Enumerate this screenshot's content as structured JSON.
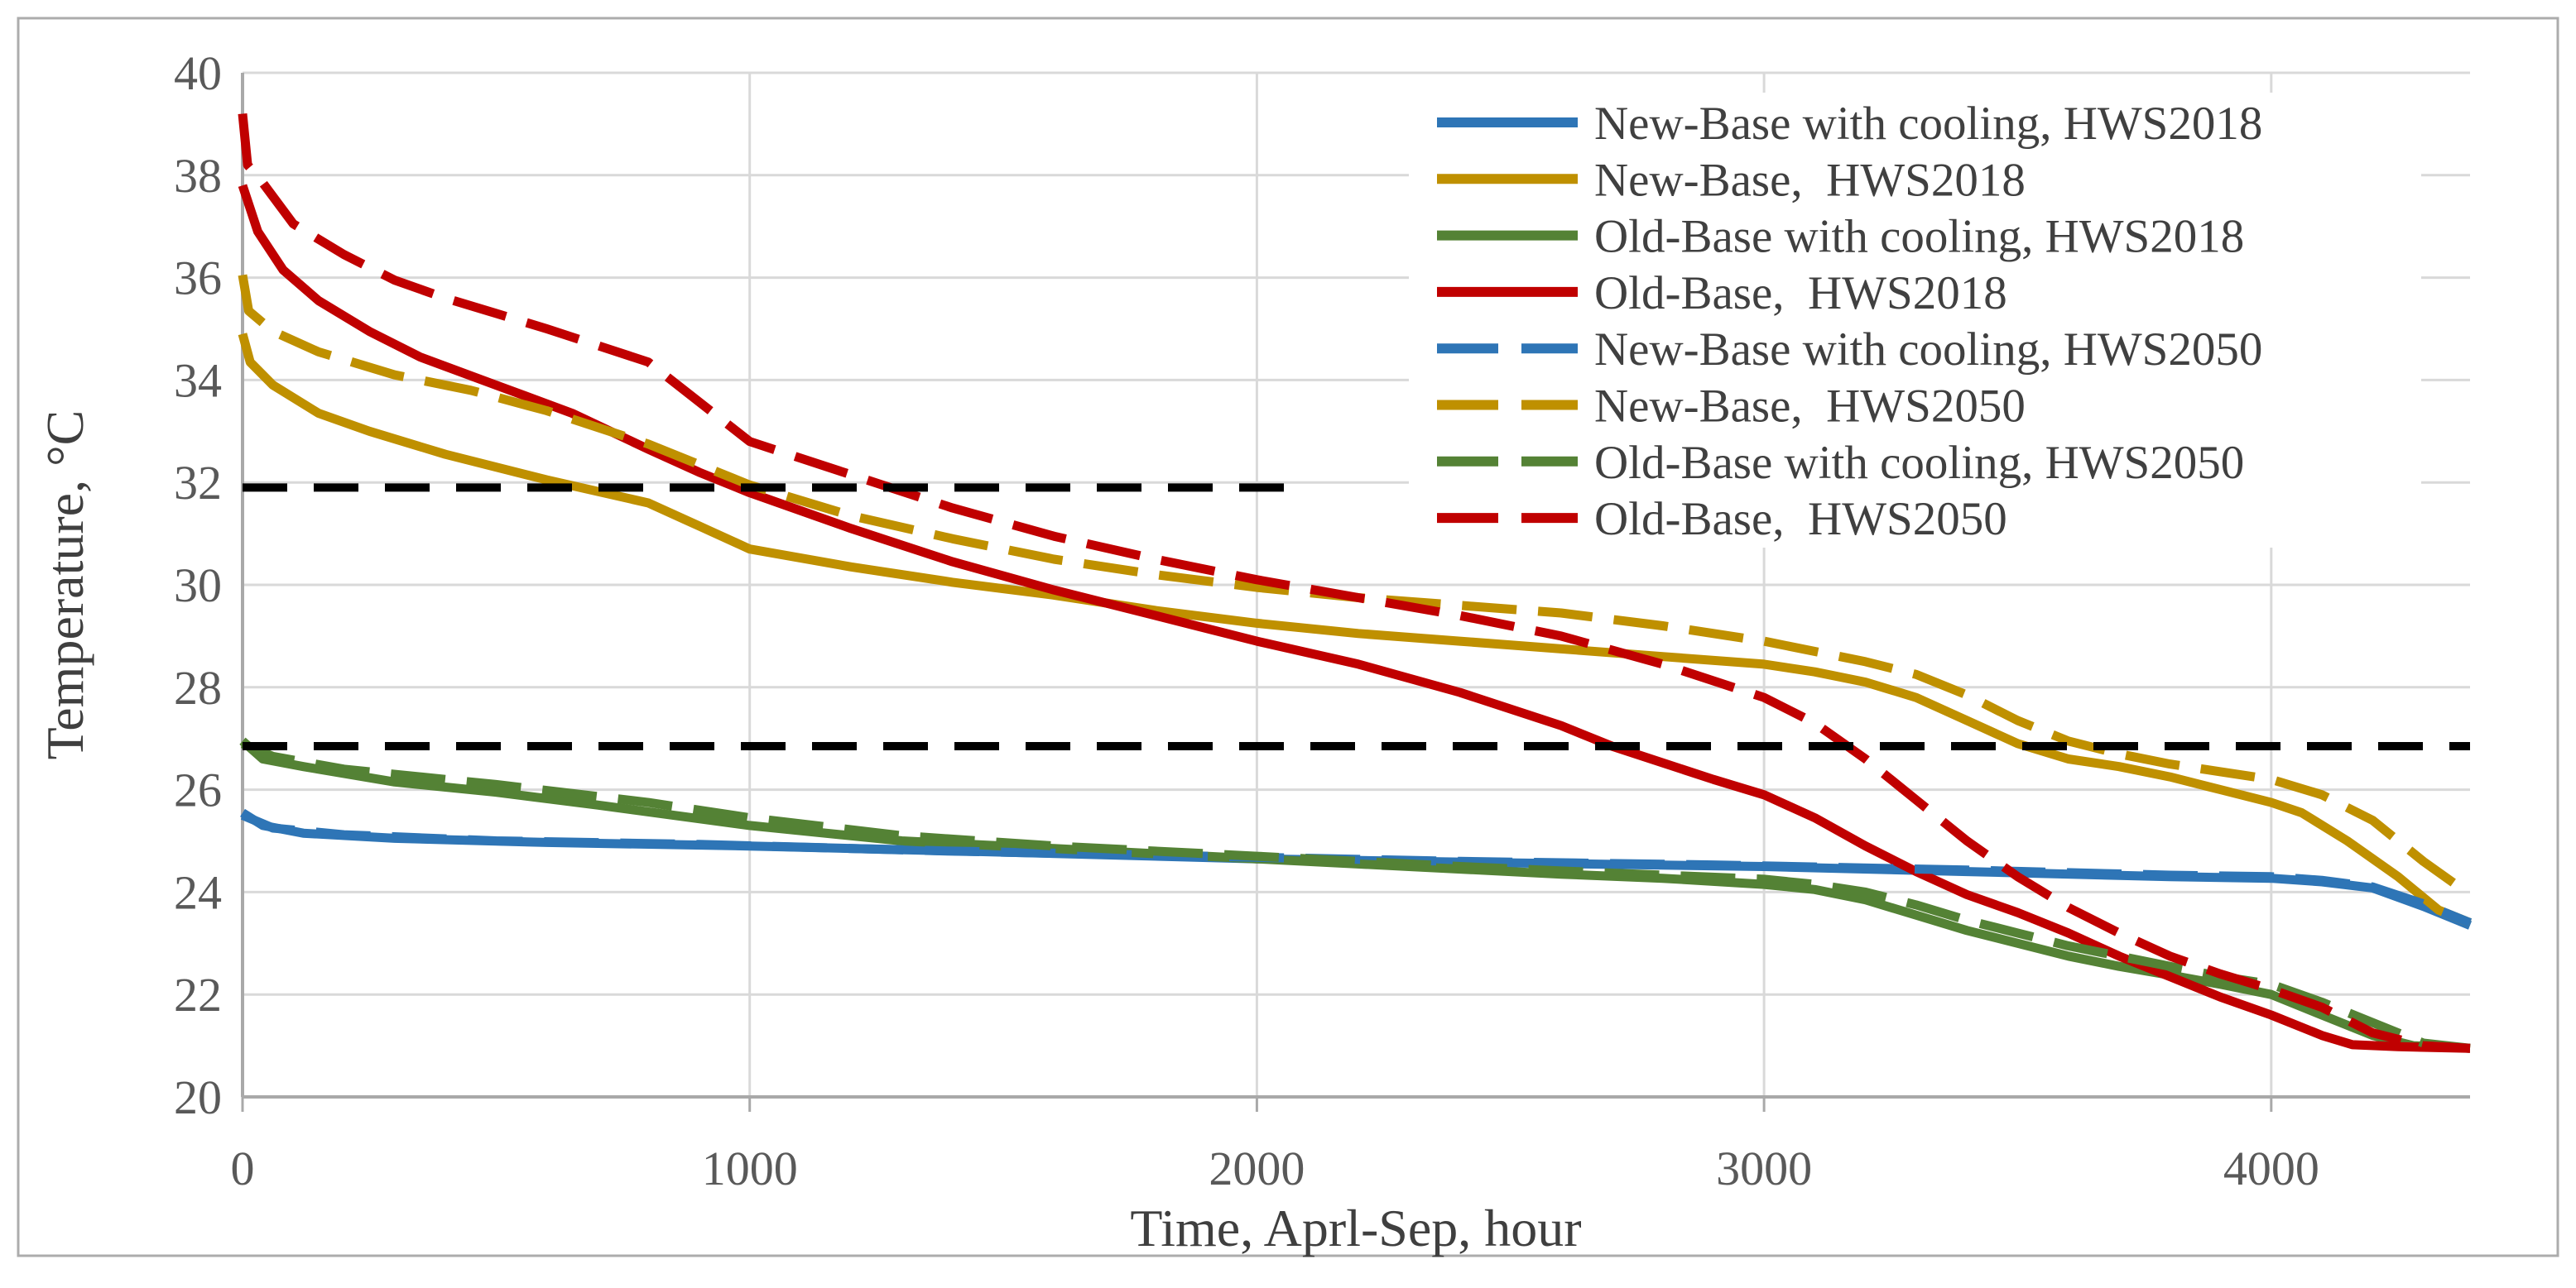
{
  "figure": {
    "type": "temperature-duration-line-chart",
    "background": "#ffffff",
    "border_color": "#acacac"
  },
  "chart_data": {
    "type": "line",
    "title": "",
    "xlabel": "Time, Aprl-Sep, hour",
    "ylabel": "Temperature, °C",
    "xlim": [
      0,
      4392
    ],
    "ylim": [
      20,
      40
    ],
    "xticks": [
      0,
      1000,
      2000,
      3000,
      4000
    ],
    "yticks": [
      20,
      22,
      24,
      26,
      28,
      30,
      32,
      34,
      36,
      38,
      40
    ],
    "grid": true,
    "gridline_color": "#d9d9d9",
    "axis_line_color": "#a9a9a9",
    "legend_position": "inside-top-right",
    "thresholds": [
      {
        "label": "upper-setpoint-line",
        "value": 31.9,
        "x_start": 0,
        "x_end": 2090,
        "color": "#000000",
        "style": "dashed"
      },
      {
        "label": "lower-setpoint-line",
        "value": 26.85,
        "x_start": 0,
        "x_end": 4392,
        "color": "#000000",
        "style": "dashed"
      }
    ],
    "series": [
      {
        "name": "New-Base with cooling, HWS2018",
        "color": "#2e75b6",
        "dash": false,
        "points": [
          [
            0,
            25.55
          ],
          [
            40,
            25.3
          ],
          [
            120,
            25.15
          ],
          [
            300,
            25.05
          ],
          [
            600,
            24.97
          ],
          [
            1000,
            24.9
          ],
          [
            1500,
            24.78
          ],
          [
            2000,
            24.65
          ],
          [
            2500,
            24.57
          ],
          [
            3000,
            24.5
          ],
          [
            3400,
            24.4
          ],
          [
            3800,
            24.3
          ],
          [
            4000,
            24.27
          ],
          [
            4100,
            24.2
          ],
          [
            4200,
            24.08
          ],
          [
            4300,
            23.72
          ],
          [
            4392,
            23.35
          ]
        ]
      },
      {
        "name": "New-Base,  HWS2018",
        "color": "#bf9000",
        "dash": false,
        "points": [
          [
            0,
            34.9
          ],
          [
            15,
            34.35
          ],
          [
            60,
            33.9
          ],
          [
            150,
            33.35
          ],
          [
            250,
            33.0
          ],
          [
            400,
            32.55
          ],
          [
            600,
            32.05
          ],
          [
            800,
            31.6
          ],
          [
            900,
            31.15
          ],
          [
            1000,
            30.7
          ],
          [
            1200,
            30.35
          ],
          [
            1400,
            30.05
          ],
          [
            1600,
            29.8
          ],
          [
            1800,
            29.5
          ],
          [
            2000,
            29.25
          ],
          [
            2200,
            29.05
          ],
          [
            2400,
            28.9
          ],
          [
            2600,
            28.75
          ],
          [
            2800,
            28.6
          ],
          [
            3000,
            28.45
          ],
          [
            3100,
            28.3
          ],
          [
            3200,
            28.1
          ],
          [
            3300,
            27.8
          ],
          [
            3400,
            27.35
          ],
          [
            3500,
            26.9
          ],
          [
            3600,
            26.6
          ],
          [
            3700,
            26.45
          ],
          [
            3800,
            26.25
          ],
          [
            3900,
            26.0
          ],
          [
            4000,
            25.75
          ],
          [
            4060,
            25.55
          ],
          [
            4150,
            25.0
          ],
          [
            4250,
            24.3
          ],
          [
            4330,
            23.65
          ],
          [
            4392,
            23.4
          ]
        ]
      },
      {
        "name": "Old-Base with cooling, HWS2018",
        "color": "#548235",
        "dash": false,
        "points": [
          [
            0,
            26.95
          ],
          [
            40,
            26.6
          ],
          [
            120,
            26.45
          ],
          [
            300,
            26.15
          ],
          [
            500,
            25.95
          ],
          [
            700,
            25.7
          ],
          [
            1000,
            25.3
          ],
          [
            1300,
            25.0
          ],
          [
            1600,
            24.85
          ],
          [
            2000,
            24.65
          ],
          [
            2300,
            24.5
          ],
          [
            2600,
            24.35
          ],
          [
            2800,
            24.27
          ],
          [
            3000,
            24.15
          ],
          [
            3100,
            24.05
          ],
          [
            3200,
            23.85
          ],
          [
            3300,
            23.55
          ],
          [
            3400,
            23.25
          ],
          [
            3500,
            23.0
          ],
          [
            3600,
            22.75
          ],
          [
            3700,
            22.55
          ],
          [
            3800,
            22.38
          ],
          [
            3900,
            22.2
          ],
          [
            4000,
            22.0
          ],
          [
            4100,
            21.6
          ],
          [
            4200,
            21.2
          ],
          [
            4280,
            21.0
          ],
          [
            4392,
            20.95
          ]
        ]
      },
      {
        "name": "Old-Base,  HWS2018",
        "color": "#c00000",
        "dash": false,
        "points": [
          [
            0,
            37.8
          ],
          [
            30,
            36.9
          ],
          [
            80,
            36.15
          ],
          [
            150,
            35.55
          ],
          [
            250,
            34.95
          ],
          [
            350,
            34.45
          ],
          [
            500,
            33.9
          ],
          [
            650,
            33.35
          ],
          [
            800,
            32.65
          ],
          [
            900,
            32.2
          ],
          [
            1000,
            31.8
          ],
          [
            1200,
            31.1
          ],
          [
            1400,
            30.45
          ],
          [
            1600,
            29.9
          ],
          [
            1800,
            29.4
          ],
          [
            2000,
            28.9
          ],
          [
            2200,
            28.45
          ],
          [
            2400,
            27.9
          ],
          [
            2600,
            27.25
          ],
          [
            2700,
            26.85
          ],
          [
            2900,
            26.2
          ],
          [
            3000,
            25.9
          ],
          [
            3100,
            25.45
          ],
          [
            3200,
            24.9
          ],
          [
            3300,
            24.4
          ],
          [
            3400,
            23.95
          ],
          [
            3500,
            23.6
          ],
          [
            3600,
            23.2
          ],
          [
            3700,
            22.75
          ],
          [
            3800,
            22.35
          ],
          [
            3900,
            21.95
          ],
          [
            4000,
            21.6
          ],
          [
            4100,
            21.2
          ],
          [
            4160,
            21.02
          ],
          [
            4250,
            20.98
          ],
          [
            4392,
            20.95
          ]
        ]
      },
      {
        "name": "New-Base with cooling, HWS2050",
        "color": "#2e75b6",
        "dash": true,
        "points": [
          [
            0,
            25.5
          ],
          [
            60,
            25.25
          ],
          [
            200,
            25.12
          ],
          [
            500,
            25.0
          ],
          [
            900,
            24.93
          ],
          [
            1400,
            24.8
          ],
          [
            1900,
            24.7
          ],
          [
            2400,
            24.6
          ],
          [
            2900,
            24.53
          ],
          [
            3400,
            24.43
          ],
          [
            3800,
            24.33
          ],
          [
            4000,
            24.3
          ],
          [
            4100,
            24.23
          ],
          [
            4200,
            24.1
          ],
          [
            4300,
            23.77
          ],
          [
            4392,
            23.4
          ]
        ]
      },
      {
        "name": "New-Base,  HWS2050",
        "color": "#bf9000",
        "dash": true,
        "points": [
          [
            0,
            36.05
          ],
          [
            12,
            35.35
          ],
          [
            60,
            34.95
          ],
          [
            150,
            34.55
          ],
          [
            300,
            34.1
          ],
          [
            450,
            33.8
          ],
          [
            600,
            33.4
          ],
          [
            800,
            32.75
          ],
          [
            1000,
            31.95
          ],
          [
            1200,
            31.35
          ],
          [
            1400,
            30.9
          ],
          [
            1600,
            30.5
          ],
          [
            1800,
            30.2
          ],
          [
            2000,
            29.95
          ],
          [
            2200,
            29.75
          ],
          [
            2400,
            29.6
          ],
          [
            2600,
            29.45
          ],
          [
            2800,
            29.2
          ],
          [
            3000,
            28.9
          ],
          [
            3200,
            28.5
          ],
          [
            3300,
            28.25
          ],
          [
            3400,
            27.85
          ],
          [
            3500,
            27.35
          ],
          [
            3600,
            26.95
          ],
          [
            3700,
            26.7
          ],
          [
            3800,
            26.5
          ],
          [
            3900,
            26.35
          ],
          [
            4000,
            26.2
          ],
          [
            4100,
            25.9
          ],
          [
            4200,
            25.4
          ],
          [
            4300,
            24.6
          ],
          [
            4392,
            23.95
          ]
        ]
      },
      {
        "name": "Old-Base with cooling, HWS2050",
        "color": "#548235",
        "dash": true,
        "points": [
          [
            0,
            26.9
          ],
          [
            60,
            26.65
          ],
          [
            200,
            26.4
          ],
          [
            500,
            26.1
          ],
          [
            800,
            25.75
          ],
          [
            1000,
            25.45
          ],
          [
            1300,
            25.1
          ],
          [
            1600,
            24.9
          ],
          [
            2000,
            24.7
          ],
          [
            2400,
            24.5
          ],
          [
            2700,
            24.37
          ],
          [
            3000,
            24.25
          ],
          [
            3100,
            24.15
          ],
          [
            3200,
            24.0
          ],
          [
            3300,
            23.75
          ],
          [
            3400,
            23.45
          ],
          [
            3500,
            23.2
          ],
          [
            3600,
            22.95
          ],
          [
            3700,
            22.75
          ],
          [
            3800,
            22.55
          ],
          [
            3900,
            22.35
          ],
          [
            4000,
            22.2
          ],
          [
            4100,
            21.85
          ],
          [
            4200,
            21.45
          ],
          [
            4300,
            21.05
          ],
          [
            4392,
            20.95
          ]
        ]
      },
      {
        "name": "Old-Base,  HWS2050",
        "color": "#c00000",
        "dash": true,
        "points": [
          [
            0,
            39.2
          ],
          [
            10,
            38.2
          ],
          [
            40,
            37.85
          ],
          [
            100,
            37.05
          ],
          [
            200,
            36.45
          ],
          [
            300,
            35.95
          ],
          [
            400,
            35.6
          ],
          [
            500,
            35.3
          ],
          [
            600,
            35.0
          ],
          [
            800,
            34.35
          ],
          [
            1000,
            32.8
          ],
          [
            1200,
            32.15
          ],
          [
            1400,
            31.5
          ],
          [
            1600,
            30.95
          ],
          [
            1800,
            30.5
          ],
          [
            2000,
            30.1
          ],
          [
            2200,
            29.75
          ],
          [
            2400,
            29.4
          ],
          [
            2600,
            29.0
          ],
          [
            2800,
            28.45
          ],
          [
            3000,
            27.8
          ],
          [
            3100,
            27.3
          ],
          [
            3200,
            26.6
          ],
          [
            3300,
            25.8
          ],
          [
            3400,
            25.0
          ],
          [
            3500,
            24.3
          ],
          [
            3600,
            23.7
          ],
          [
            3700,
            23.2
          ],
          [
            3800,
            22.75
          ],
          [
            3900,
            22.4
          ],
          [
            4000,
            22.1
          ],
          [
            4100,
            21.75
          ],
          [
            4200,
            21.25
          ],
          [
            4300,
            21.0
          ],
          [
            4392,
            20.95
          ]
        ]
      }
    ]
  }
}
